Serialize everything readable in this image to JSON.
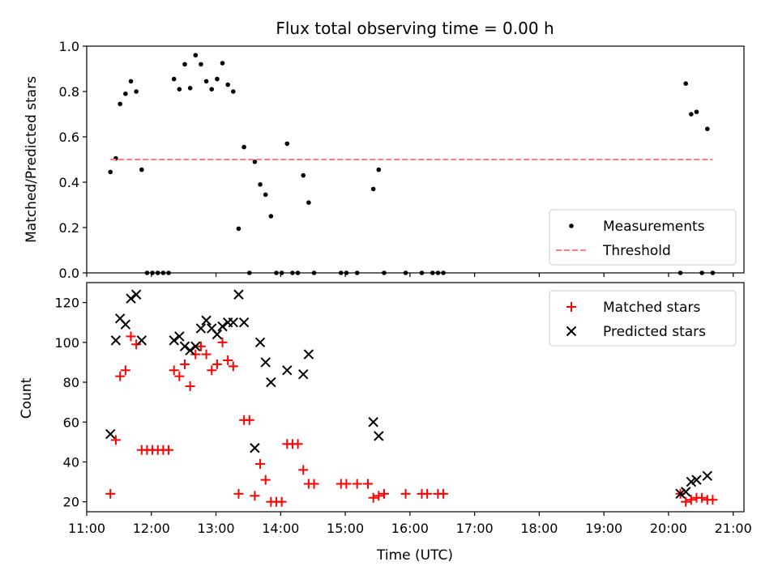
{
  "chart_data": [
    {
      "type": "scatter",
      "title": "Flux total observing time = 0.00 h",
      "xlabel": "",
      "ylabel": "Matched/Predicted stars",
      "xlim": [
        "11:00",
        "21:10"
      ],
      "ylim": [
        0,
        1.0
      ],
      "yticks": [
        "0.0",
        "0.2",
        "0.4",
        "0.6",
        "0.8",
        "1.0"
      ],
      "legend_position": "lower-right",
      "series": [
        {
          "name": "Measurements",
          "color": "#000000",
          "marker": "dot",
          "points": [
            [
              "11:22",
              0.445
            ],
            [
              "11:27",
              0.505
            ],
            [
              "11:31",
              0.745
            ],
            [
              "11:36",
              0.79
            ],
            [
              "11:41",
              0.845
            ],
            [
              "11:46",
              0.8
            ],
            [
              "11:51",
              0.455
            ],
            [
              "11:56",
              0.0
            ],
            [
              "12:01",
              0.0
            ],
            [
              "12:06",
              0.0
            ],
            [
              "12:11",
              0.0
            ],
            [
              "12:16",
              0.0
            ],
            [
              "12:21",
              0.855
            ],
            [
              "12:26",
              0.81
            ],
            [
              "12:31",
              0.92
            ],
            [
              "12:36",
              0.815
            ],
            [
              "12:41",
              0.96
            ],
            [
              "12:46",
              0.92
            ],
            [
              "12:51",
              0.845
            ],
            [
              "12:56",
              0.81
            ],
            [
              "13:01",
              0.855
            ],
            [
              "13:06",
              0.925
            ],
            [
              "13:11",
              0.83
            ],
            [
              "13:16",
              0.8
            ],
            [
              "13:21",
              0.195
            ],
            [
              "13:26",
              0.555
            ],
            [
              "13:31",
              0.0
            ],
            [
              "13:36",
              0.49
            ],
            [
              "13:41",
              0.39
            ],
            [
              "13:46",
              0.345
            ],
            [
              "13:51",
              0.25
            ],
            [
              "13:56",
              0.0
            ],
            [
              "14:01",
              0.0
            ],
            [
              "14:06",
              0.57
            ],
            [
              "14:11",
              0.0
            ],
            [
              "14:16",
              0.0
            ],
            [
              "14:21",
              0.43
            ],
            [
              "14:26",
              0.31
            ],
            [
              "14:31",
              0.0
            ],
            [
              "14:56",
              0.0
            ],
            [
              "15:01",
              0.0
            ],
            [
              "15:11",
              0.0
            ],
            [
              "15:26",
              0.37
            ],
            [
              "15:31",
              0.455
            ],
            [
              "15:36",
              0.0
            ],
            [
              "15:56",
              0.0
            ],
            [
              "16:11",
              0.0
            ],
            [
              "16:21",
              0.0
            ],
            [
              "16:26",
              0.0
            ],
            [
              "16:31",
              0.0
            ],
            [
              "20:11",
              0.0
            ],
            [
              "20:16",
              0.835
            ],
            [
              "20:21",
              0.7
            ],
            [
              "20:26",
              0.71
            ],
            [
              "20:31",
              0.0
            ],
            [
              "20:36",
              0.635
            ],
            [
              "20:41",
              0.0
            ]
          ]
        },
        {
          "name": "Threshold",
          "color": "#ff7f7f",
          "style": "dashed",
          "points": [
            [
              "11:22",
              0.5
            ],
            [
              "20:41",
              0.5
            ]
          ]
        }
      ]
    },
    {
      "type": "scatter",
      "title": "",
      "xlabel": "Time (UTC)",
      "ylabel": "Count",
      "xlim": [
        "11:00",
        "21:10"
      ],
      "ylim": [
        15,
        130
      ],
      "xticks": [
        "11:00",
        "12:00",
        "13:00",
        "14:00",
        "15:00",
        "16:00",
        "17:00",
        "18:00",
        "19:00",
        "20:00",
        "21:00"
      ],
      "yticks": [
        "20",
        "40",
        "60",
        "80",
        "100",
        "120"
      ],
      "legend_position": "top-right",
      "series": [
        {
          "name": "Matched stars",
          "color": "#ff0000",
          "marker": "plus",
          "points": [
            [
              "11:22",
              24
            ],
            [
              "11:27",
              51
            ],
            [
              "11:31",
              83
            ],
            [
              "11:36",
              86
            ],
            [
              "11:41",
              103
            ],
            [
              "11:46",
              99
            ],
            [
              "11:51",
              46
            ],
            [
              "11:56",
              46
            ],
            [
              "12:01",
              46
            ],
            [
              "12:06",
              46
            ],
            [
              "12:11",
              46
            ],
            [
              "12:16",
              46
            ],
            [
              "12:21",
              86
            ],
            [
              "12:26",
              83
            ],
            [
              "12:31",
              89
            ],
            [
              "12:36",
              78
            ],
            [
              "12:41",
              94
            ],
            [
              "12:46",
              98
            ],
            [
              "12:51",
              94
            ],
            [
              "12:56",
              86
            ],
            [
              "13:01",
              89
            ],
            [
              "13:06",
              100
            ],
            [
              "13:11",
              91
            ],
            [
              "13:16",
              88
            ],
            [
              "13:21",
              24
            ],
            [
              "13:26",
              61
            ],
            [
              "13:31",
              61
            ],
            [
              "13:36",
              23
            ],
            [
              "13:41",
              39
            ],
            [
              "13:46",
              31
            ],
            [
              "13:51",
              20
            ],
            [
              "13:56",
              20
            ],
            [
              "14:01",
              20
            ],
            [
              "14:06",
              49
            ],
            [
              "14:11",
              49
            ],
            [
              "14:16",
              49
            ],
            [
              "14:21",
              36
            ],
            [
              "14:26",
              29
            ],
            [
              "14:31",
              29
            ],
            [
              "14:56",
              29
            ],
            [
              "15:01",
              29
            ],
            [
              "15:11",
              29
            ],
            [
              "15:21",
              29
            ],
            [
              "15:26",
              22
            ],
            [
              "15:31",
              23
            ],
            [
              "15:36",
              24
            ],
            [
              "15:56",
              24
            ],
            [
              "16:11",
              24
            ],
            [
              "16:16",
              24
            ],
            [
              "16:26",
              24
            ],
            [
              "16:31",
              24
            ],
            [
              "20:11",
              24
            ],
            [
              "20:16",
              20
            ],
            [
              "20:21",
              21
            ],
            [
              "20:26",
              22
            ],
            [
              "20:31",
              22
            ],
            [
              "20:36",
              21
            ],
            [
              "20:41",
              21
            ]
          ]
        },
        {
          "name": "Predicted stars",
          "color": "#000000",
          "marker": "x",
          "points": [
            [
              "11:22",
              54
            ],
            [
              "11:27",
              101
            ],
            [
              "11:31",
              112
            ],
            [
              "11:36",
              109
            ],
            [
              "11:41",
              122
            ],
            [
              "11:46",
              124
            ],
            [
              "11:51",
              101
            ],
            [
              "12:21",
              101
            ],
            [
              "12:26",
              103
            ],
            [
              "12:31",
              98
            ],
            [
              "12:36",
              96
            ],
            [
              "12:41",
              98
            ],
            [
              "12:46",
              107
            ],
            [
              "12:51",
              111
            ],
            [
              "12:56",
              107
            ],
            [
              "13:01",
              104
            ],
            [
              "13:06",
              108
            ],
            [
              "13:11",
              110
            ],
            [
              "13:16",
              110
            ],
            [
              "13:21",
              124
            ],
            [
              "13:26",
              110
            ],
            [
              "13:36",
              47
            ],
            [
              "13:41",
              100
            ],
            [
              "13:46",
              90
            ],
            [
              "13:51",
              80
            ],
            [
              "14:06",
              86
            ],
            [
              "14:21",
              84
            ],
            [
              "14:26",
              94
            ],
            [
              "15:26",
              60
            ],
            [
              "15:31",
              53
            ],
            [
              "20:11",
              24
            ],
            [
              "20:16",
              25
            ],
            [
              "20:21",
              30
            ],
            [
              "20:26",
              31
            ],
            [
              "20:36",
              33
            ]
          ]
        }
      ]
    }
  ]
}
